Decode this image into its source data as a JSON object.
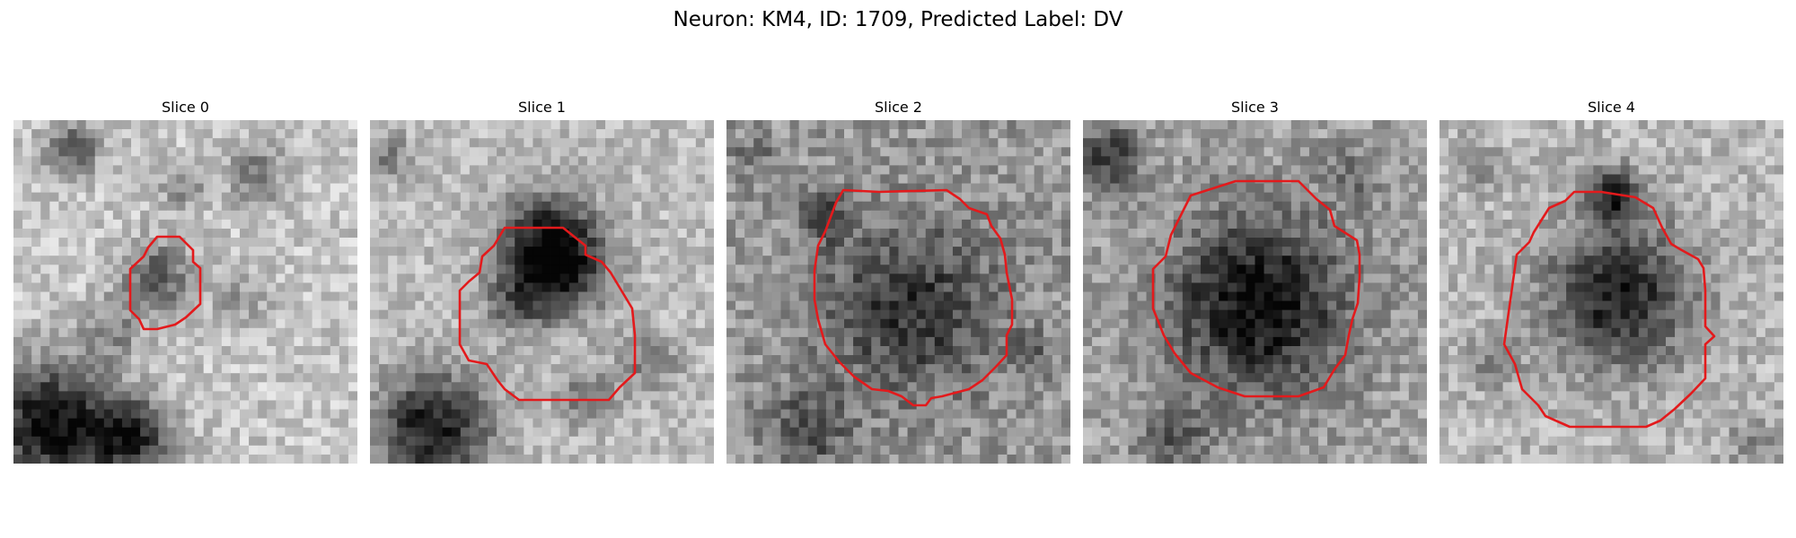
{
  "figure": {
    "title": "Neuron: KM4, ID: 1709, Predicted Label: DV"
  },
  "contour_color": "#e31a1c",
  "colormap": "grayscale",
  "panels": [
    {
      "title": "Slice 0"
    },
    {
      "title": "Slice 1"
    },
    {
      "title": "Slice 2"
    },
    {
      "title": "Slice 3"
    },
    {
      "title": "Slice 4"
    }
  ]
}
